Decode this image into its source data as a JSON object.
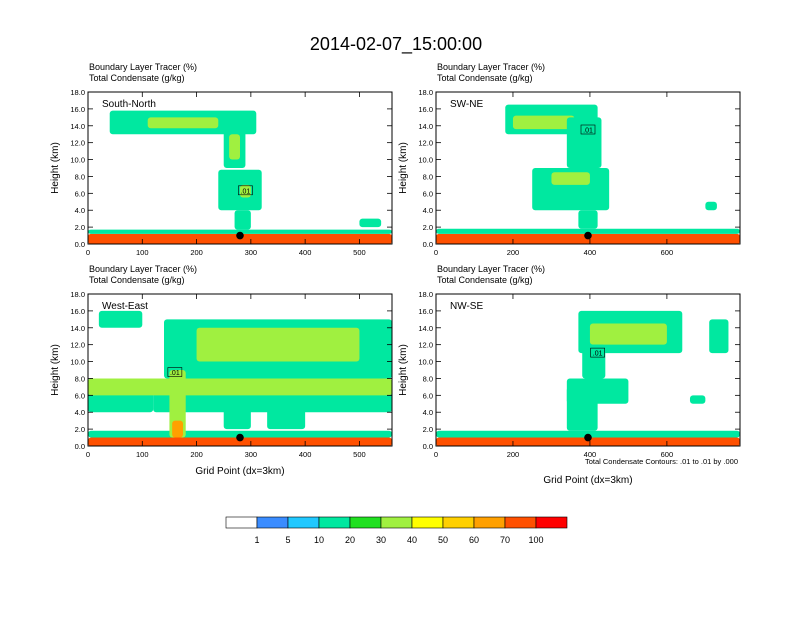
{
  "title": "2014-02-07_15:00:00",
  "panel_label_line1": "Boundary Layer Tracer   (%)",
  "panel_label_line2": "Total Condensate   (g/kg)",
  "ylabel": "Height (km)",
  "xlabel": "Grid Point (dx=3km)",
  "contour_note": "Total Condensate Contours: .01 to .01 by .000",
  "contour_label": ".01",
  "colors": {
    "frame": "#000000",
    "marker": "#000000",
    "contour": "#000000"
  },
  "colorbar": {
    "colors": [
      "#ffffff",
      "#3a8cff",
      "#20c8ff",
      "#00e8a0",
      "#20e020",
      "#a0f040",
      "#ffff00",
      "#ffd000",
      "#ffa000",
      "#ff5000",
      "#ff0000"
    ],
    "labels": [
      "1",
      "5",
      "10",
      "20",
      "30",
      "40",
      "50",
      "60",
      "70",
      "100"
    ]
  },
  "chart_data": [
    {
      "type": "heatmap",
      "name": "South-North",
      "panel_title": "South-North",
      "xlim": [
        0,
        560
      ],
      "ylim": [
        0,
        18
      ],
      "xticks": [
        0,
        100,
        200,
        300,
        400,
        500
      ],
      "xtick_labels": [
        "0",
        "100",
        "200",
        "300",
        "400",
        "500"
      ],
      "yticks": [
        0,
        2,
        4,
        6,
        8,
        10,
        12,
        14,
        16,
        18
      ],
      "ytick_labels": [
        "0.0",
        "2.0",
        "4.0",
        "6.0",
        "8.0",
        "10.0",
        "12.0",
        "14.0",
        "16.0",
        "18.0"
      ],
      "marker": {
        "x": 280,
        "y": 1.0
      },
      "contour_label_pos": {
        "x": 290,
        "y": 6.3
      },
      "regions": [
        {
          "x": [
            0,
            560
          ],
          "y": [
            0,
            1.2
          ],
          "level": 70
        },
        {
          "x": [
            0,
            560
          ],
          "y": [
            1.2,
            1.7
          ],
          "level": 10
        },
        {
          "x": [
            270,
            300
          ],
          "y": [
            1.7,
            4.0
          ],
          "level": 10
        },
        {
          "x": [
            240,
            320
          ],
          "y": [
            4.0,
            8.8
          ],
          "level": 10
        },
        {
          "x": [
            280,
            300
          ],
          "y": [
            5.5,
            7.0
          ],
          "level": 30
        },
        {
          "x": [
            40,
            310
          ],
          "y": [
            13.0,
            15.8
          ],
          "level": 10
        },
        {
          "x": [
            110,
            240
          ],
          "y": [
            13.7,
            15.0
          ],
          "level": 30
        },
        {
          "x": [
            250,
            290
          ],
          "y": [
            9.0,
            15.0
          ],
          "level": 10
        },
        {
          "x": [
            260,
            280
          ],
          "y": [
            10.0,
            13.0
          ],
          "level": 30
        },
        {
          "x": [
            500,
            540
          ],
          "y": [
            2.0,
            3.0
          ],
          "level": 10
        }
      ]
    },
    {
      "type": "heatmap",
      "name": "SW-NE",
      "panel_title": "SW-NE",
      "xlim": [
        0,
        790
      ],
      "ylim": [
        0,
        18
      ],
      "xticks": [
        0,
        200,
        400,
        600
      ],
      "xtick_labels": [
        "0",
        "200",
        "400",
        "600"
      ],
      "yticks": [
        0,
        2,
        4,
        6,
        8,
        10,
        12,
        14,
        16,
        18
      ],
      "ytick_labels": [
        "0.0",
        "2.0",
        "4.0",
        "6.0",
        "8.0",
        "10.0",
        "12.0",
        "14.0",
        "16.0",
        "18.0"
      ],
      "marker": {
        "x": 395,
        "y": 1.0
      },
      "contour_label_pos": {
        "x": 395,
        "y": 13.5
      },
      "regions": [
        {
          "x": [
            0,
            790
          ],
          "y": [
            0,
            1.2
          ],
          "level": 70
        },
        {
          "x": [
            0,
            790
          ],
          "y": [
            1.2,
            1.8
          ],
          "level": 10
        },
        {
          "x": [
            370,
            420
          ],
          "y": [
            1.8,
            4.0
          ],
          "level": 10
        },
        {
          "x": [
            250,
            450
          ],
          "y": [
            4.0,
            9.0
          ],
          "level": 10
        },
        {
          "x": [
            300,
            400
          ],
          "y": [
            7.0,
            8.5
          ],
          "level": 30
        },
        {
          "x": [
            180,
            420
          ],
          "y": [
            13.0,
            16.5
          ],
          "level": 10
        },
        {
          "x": [
            200,
            360
          ],
          "y": [
            13.6,
            15.2
          ],
          "level": 30
        },
        {
          "x": [
            340,
            430
          ],
          "y": [
            9.0,
            15.0
          ],
          "level": 10
        },
        {
          "x": [
            700,
            730
          ],
          "y": [
            4.0,
            5.0
          ],
          "level": 10
        }
      ]
    },
    {
      "type": "heatmap",
      "name": "West-East",
      "panel_title": "West-East",
      "xlim": [
        0,
        560
      ],
      "ylim": [
        0,
        18
      ],
      "xticks": [
        0,
        100,
        200,
        300,
        400,
        500
      ],
      "xtick_labels": [
        "0",
        "100",
        "200",
        "300",
        "400",
        "500"
      ],
      "yticks": [
        0,
        2,
        4,
        6,
        8,
        10,
        12,
        14,
        16,
        18
      ],
      "ytick_labels": [
        "0.0",
        "2.0",
        "4.0",
        "6.0",
        "8.0",
        "10.0",
        "12.0",
        "14.0",
        "16.0",
        "18.0"
      ],
      "marker": {
        "x": 280,
        "y": 1.0
      },
      "contour_label_pos": {
        "x": 160,
        "y": 8.7
      },
      "regions": [
        {
          "x": [
            0,
            560
          ],
          "y": [
            0,
            1.0
          ],
          "level": 70
        },
        {
          "x": [
            0,
            560
          ],
          "y": [
            1.0,
            1.8
          ],
          "level": 10
        },
        {
          "x": [
            0,
            120
          ],
          "y": [
            4.0,
            8.0
          ],
          "level": 10
        },
        {
          "x": [
            120,
            560
          ],
          "y": [
            4.0,
            7.0
          ],
          "level": 10
        },
        {
          "x": [
            0,
            560
          ],
          "y": [
            6.0,
            8.0
          ],
          "level": 30
        },
        {
          "x": [
            140,
            560
          ],
          "y": [
            8.0,
            15.0
          ],
          "level": 10
        },
        {
          "x": [
            200,
            500
          ],
          "y": [
            10.0,
            14.0
          ],
          "level": 30
        },
        {
          "x": [
            20,
            100
          ],
          "y": [
            14.0,
            16.0
          ],
          "level": 10
        },
        {
          "x": [
            150,
            180
          ],
          "y": [
            1.0,
            9.0
          ],
          "level": 30
        },
        {
          "x": [
            155,
            175
          ],
          "y": [
            1.0,
            3.0
          ],
          "level": 60
        },
        {
          "x": [
            250,
            300
          ],
          "y": [
            2.0,
            5.0
          ],
          "level": 10
        },
        {
          "x": [
            330,
            400
          ],
          "y": [
            2.0,
            5.0
          ],
          "level": 10
        }
      ]
    },
    {
      "type": "heatmap",
      "name": "NW-SE",
      "panel_title": "NW-SE",
      "xlim": [
        0,
        790
      ],
      "ylim": [
        0,
        18
      ],
      "xticks": [
        0,
        200,
        400,
        600
      ],
      "xtick_labels": [
        "0",
        "200",
        "400",
        "600"
      ],
      "yticks": [
        0,
        2,
        4,
        6,
        8,
        10,
        12,
        14,
        16,
        18
      ],
      "ytick_labels": [
        "0.0",
        "2.0",
        "4.0",
        "6.0",
        "8.0",
        "10.0",
        "12.0",
        "14.0",
        "16.0",
        "18.0"
      ],
      "marker": {
        "x": 395,
        "y": 1.0
      },
      "contour_label_pos": {
        "x": 420,
        "y": 11.0
      },
      "regions": [
        {
          "x": [
            0,
            790
          ],
          "y": [
            0,
            1.0
          ],
          "level": 70
        },
        {
          "x": [
            0,
            790
          ],
          "y": [
            1.0,
            1.8
          ],
          "level": 10
        },
        {
          "x": [
            340,
            420
          ],
          "y": [
            1.8,
            7.0
          ],
          "level": 10
        },
        {
          "x": [
            340,
            500
          ],
          "y": [
            5.0,
            8.0
          ],
          "level": 10
        },
        {
          "x": [
            370,
            640
          ],
          "y": [
            11.0,
            16.0
          ],
          "level": 10
        },
        {
          "x": [
            400,
            600
          ],
          "y": [
            12.0,
            14.5
          ],
          "level": 30
        },
        {
          "x": [
            380,
            440
          ],
          "y": [
            8.0,
            12.0
          ],
          "level": 10
        },
        {
          "x": [
            710,
            760
          ],
          "y": [
            11.0,
            15.0
          ],
          "level": 10
        },
        {
          "x": [
            660,
            700
          ],
          "y": [
            5.0,
            6.0
          ],
          "level": 10
        }
      ]
    }
  ]
}
